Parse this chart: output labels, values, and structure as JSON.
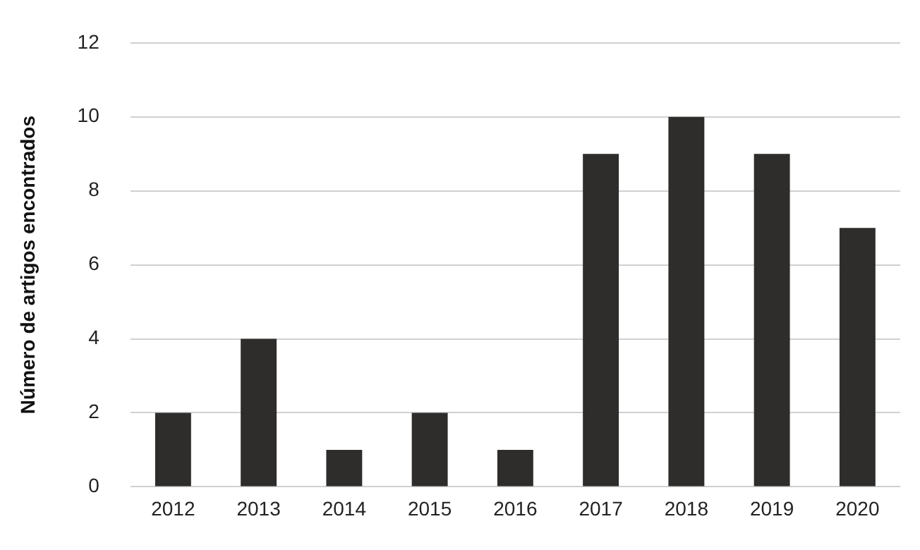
{
  "chart_data": {
    "type": "bar",
    "ylabel": "Número de artigos encontrados",
    "categories": [
      "2012",
      "2013",
      "2014",
      "2015",
      "2016",
      "2017",
      "2018",
      "2019",
      "2020"
    ],
    "values": [
      2,
      4,
      1,
      2,
      1,
      9,
      10,
      9,
      7
    ],
    "color": "#2e2d2b",
    "ylim": [
      0,
      12
    ],
    "yticks": [
      0,
      2,
      4,
      6,
      8,
      10,
      12
    ],
    "grid": "y"
  }
}
